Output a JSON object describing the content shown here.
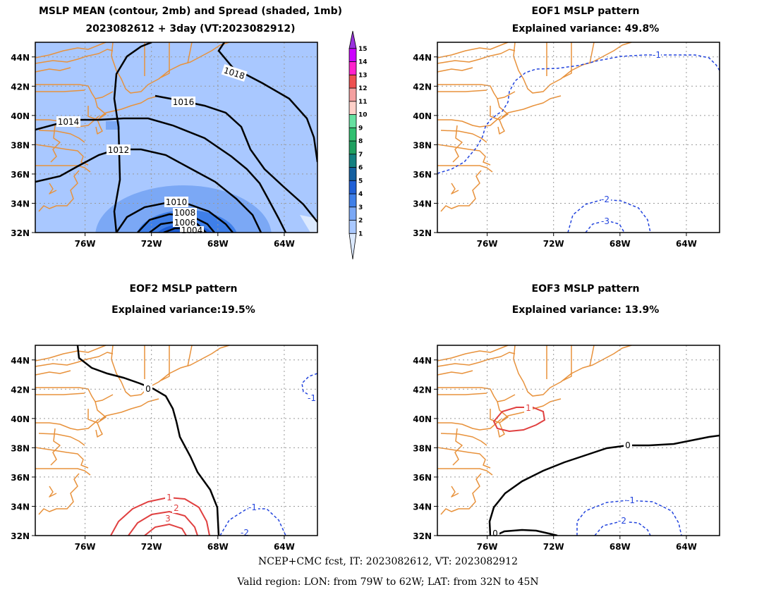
{
  "panel1": {
    "title1": "MSLP MEAN (contour, 2mb) and Spread (shaded, 1mb)",
    "title2": "2023082612 + 3day (VT:2023082912)",
    "contour_labels": [
      "1018",
      "1016",
      "1014",
      "1012",
      "1010",
      "1008",
      "1006",
      "1004"
    ]
  },
  "panel2": {
    "title1": "EOF1 MSLP pattern",
    "title2": "Explained variance: 49.8%",
    "labels": [
      "-1",
      "-2",
      "-3"
    ]
  },
  "panel3": {
    "title1": "EOF2 MSLP pattern",
    "title2": "Explained variance:19.5%",
    "labels": [
      "0",
      "1",
      "2",
      "3",
      "-1",
      "-2",
      "-1"
    ]
  },
  "panel4": {
    "title1": "EOF3 MSLP pattern",
    "title2": "Explained variance: 13.9%",
    "labels": [
      "1",
      "0",
      "0",
      "-1",
      "-2"
    ]
  },
  "axes": {
    "lat_ticks": [
      "44N",
      "42N",
      "40N",
      "38N",
      "36N",
      "34N",
      "32N"
    ],
    "lon_ticks": [
      "76W",
      "72W",
      "68W",
      "64W"
    ]
  },
  "colorbar": {
    "labels": [
      "1",
      "2",
      "3",
      "4",
      "5",
      "6",
      "7",
      "8",
      "9",
      "10",
      "11",
      "12",
      "13",
      "14",
      "15"
    ],
    "colors": [
      "#dbe9ff",
      "#a9c8ff",
      "#7ba8f5",
      "#3f7fe8",
      "#1f5fd6",
      "#1560a0",
      "#148080",
      "#1fa060",
      "#30c070",
      "#66e0a0",
      "#ffd0c8",
      "#f4a0a0",
      "#ee5050",
      "#ff22cc",
      "#cc00ff",
      "#9933dd"
    ]
  },
  "footer": {
    "line1": "NCEP+CMC fcst, IT: 2023082612, VT: 2023082912",
    "line2": "Valid region: LON: from 79W to 62W; LAT: from 32N to 45N"
  },
  "colors": {
    "coast": "#e8923c",
    "neg": "#2244dd",
    "pos": "#e04040",
    "mean": "#000000",
    "fill": "#a9c8ff"
  }
}
